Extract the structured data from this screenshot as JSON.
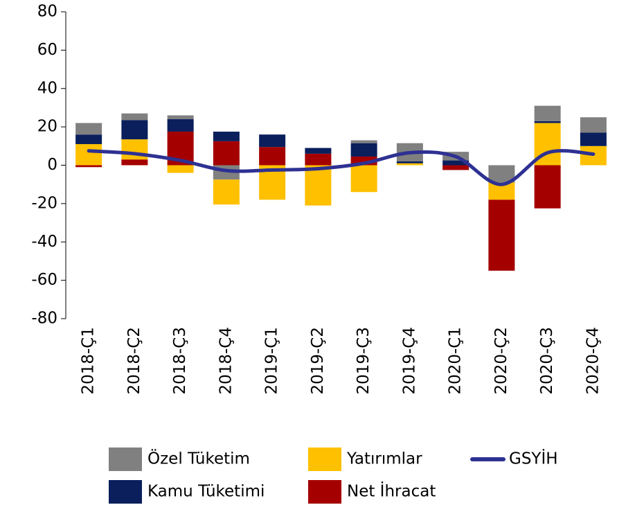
{
  "chart_data": {
    "type": "bar",
    "categories": [
      "2018-Ç1",
      "2018-Ç2",
      "2018-Ç3",
      "2018-Ç4",
      "2019-Ç1",
      "2019-Ç2",
      "2019-Ç3",
      "2019-Ç4",
      "2020-Ç1",
      "2020-Ç2",
      "2020-Ç3",
      "2020-Ç4"
    ],
    "series": [
      {
        "name": "Özel Tüketim",
        "color": "#808080",
        "values": [
          6,
          3.5,
          2,
          -7.5,
          0,
          0,
          1.5,
          9.5,
          4.5,
          -9,
          8,
          8
        ]
      },
      {
        "name": "Kamu Tüketimi",
        "color": "#0a1f5c",
        "values": [
          5,
          10,
          6.5,
          5,
          6.5,
          3,
          7,
          1,
          2.5,
          0,
          1,
          7
        ]
      },
      {
        "name": "Yatırımlar",
        "color": "#ffc000",
        "values": [
          11,
          10.5,
          -4,
          -13,
          -18,
          -21,
          -14,
          1,
          0,
          -9,
          22,
          10
        ]
      },
      {
        "name": "Net İhracat",
        "color": "#a50000",
        "values": [
          -1,
          3,
          17.5,
          12.5,
          9.5,
          6,
          4.5,
          0,
          -2.5,
          -37,
          -22.5,
          0
        ]
      },
      {
        "name": "GSYİH",
        "type": "line",
        "color": "#2e3192",
        "values": [
          7.5,
          6,
          2.5,
          -2.8,
          -2.5,
          -1.8,
          1,
          6.5,
          4.5,
          -10,
          6.5,
          5.8
        ]
      }
    ],
    "ylim": [
      -80,
      80
    ],
    "yticks": [
      -80,
      -60,
      -40,
      -20,
      0,
      20,
      40,
      60,
      80
    ],
    "grid": false,
    "legend": "bottom"
  }
}
